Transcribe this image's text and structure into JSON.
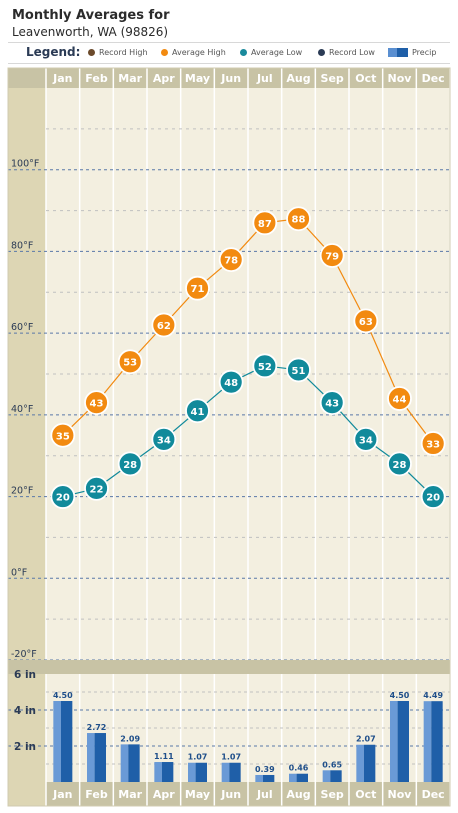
{
  "header": {
    "title": "Monthly Averages for",
    "subtitle": "Leavenworth, WA (98826)"
  },
  "legend": {
    "label": "Legend:",
    "items": [
      {
        "name": "Record High",
        "color": "#6b4a2b"
      },
      {
        "name": "Average High",
        "color": "#f28a10"
      },
      {
        "name": "Average Low",
        "color": "#1a8a9c"
      },
      {
        "name": "Record Low",
        "color": "#2b3b55"
      },
      {
        "name": "Precip",
        "color": "#1f5fa8"
      }
    ]
  },
  "colors": {
    "avg_high": "#f28a10",
    "avg_low": "#118a9b",
    "precip": "#1f5fa8",
    "plot_bg": "#f3efe0",
    "header_band": "#c8c3a5"
  },
  "chart_data": [
    {
      "type": "line",
      "categories": [
        "Jan",
        "Feb",
        "Mar",
        "Apr",
        "May",
        "Jun",
        "Jul",
        "Aug",
        "Sep",
        "Oct",
        "Nov",
        "Dec"
      ],
      "series": [
        {
          "name": "Average High",
          "values": [
            35,
            43,
            53,
            62,
            71,
            78,
            87,
            88,
            79,
            63,
            44,
            33
          ]
        },
        {
          "name": "Average Low",
          "values": [
            20,
            22,
            28,
            34,
            41,
            48,
            52,
            51,
            43,
            34,
            28,
            20
          ]
        }
      ],
      "ylim": [
        -20,
        120
      ],
      "yticks": [
        {
          "value": 100,
          "label": "100°F"
        },
        {
          "value": 80,
          "label": "80°F"
        },
        {
          "value": 60,
          "label": "60°F"
        },
        {
          "value": 40,
          "label": "40°F"
        },
        {
          "value": 20,
          "label": "20°F"
        },
        {
          "value": 0,
          "label": "0°F"
        },
        {
          "value": -20,
          "label": "-20°F"
        }
      ],
      "grid": true
    },
    {
      "type": "bar",
      "categories": [
        "Jan",
        "Feb",
        "Mar",
        "Apr",
        "May",
        "Jun",
        "Jul",
        "Aug",
        "Sep",
        "Oct",
        "Nov",
        "Dec"
      ],
      "series": [
        {
          "name": "Precip",
          "values": [
            4.5,
            2.72,
            2.09,
            1.11,
            1.07,
            1.07,
            0.39,
            0.46,
            0.65,
            2.07,
            4.5,
            4.49
          ],
          "labels": [
            "4.50",
            "2.72",
            "2.09",
            "1.11",
            "1.07",
            "1.07",
            "0.39",
            "0.46",
            "0.65",
            "2.07",
            "4.50",
            "4.49"
          ]
        }
      ],
      "ylim": [
        0,
        6
      ],
      "yticks": [
        {
          "value": 6,
          "label": "6 in"
        },
        {
          "value": 4,
          "label": "4 in"
        },
        {
          "value": 2,
          "label": "2 in"
        }
      ],
      "grid": true
    }
  ]
}
